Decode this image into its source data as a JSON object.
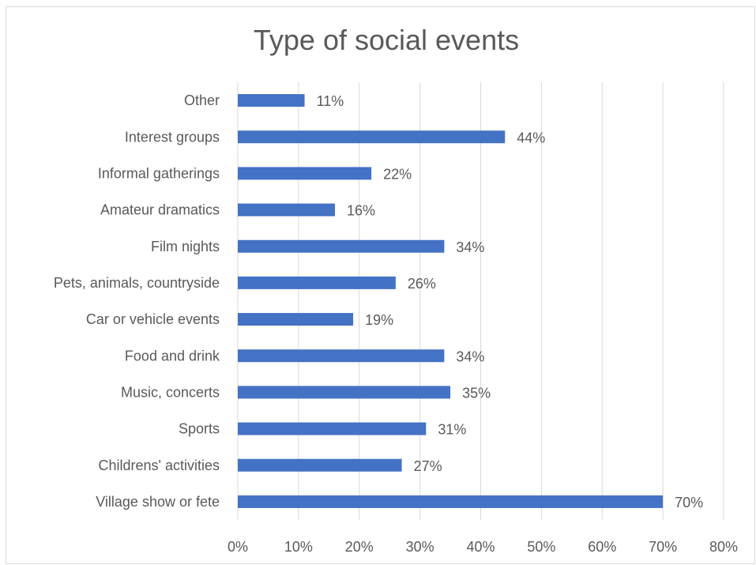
{
  "chart_data": {
    "type": "bar",
    "orientation": "horizontal",
    "title": "Type of social events",
    "xlabel": "",
    "ylabel": "",
    "categories": [
      "Other",
      "Interest groups",
      "Informal gatherings",
      "Amateur dramatics",
      "Film nights",
      "Pets, animals, countryside",
      "Car or vehicle events",
      "Food and drink",
      "Music, concerts",
      "Sports",
      "Childrens' activities",
      "Village show or fete"
    ],
    "values": [
      11,
      44,
      22,
      16,
      34,
      26,
      19,
      34,
      35,
      31,
      27,
      70
    ],
    "data_labels": [
      "11%",
      "44%",
      "22%",
      "16%",
      "34%",
      "26%",
      "19%",
      "34%",
      "35%",
      "31%",
      "27%",
      "70%"
    ],
    "xlim": [
      0,
      80
    ],
    "x_ticks": [
      0,
      10,
      20,
      30,
      40,
      50,
      60,
      70,
      80
    ],
    "x_tick_labels": [
      "0%",
      "10%",
      "20%",
      "30%",
      "40%",
      "50%",
      "60%",
      "70%",
      "80%"
    ],
    "grid": "vertical",
    "legend": "none",
    "bar_color": "#4472c4",
    "gridline_color": "#d9d9d9",
    "text_color": "#595959"
  }
}
